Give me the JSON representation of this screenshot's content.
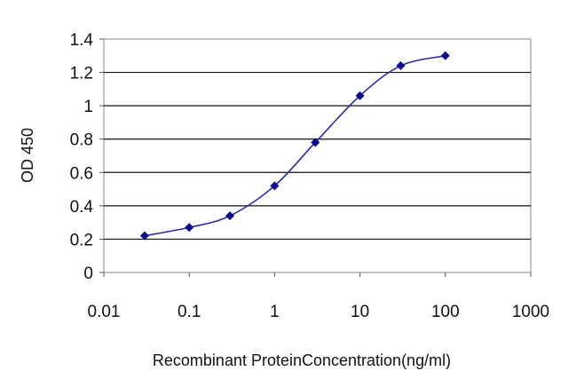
{
  "chart_data": {
    "type": "line",
    "title": "",
    "xlabel": "Recombinant ProteinConcentration(ng/ml)",
    "ylabel": "OD 450",
    "x_scale": "log",
    "xlim": [
      0.01,
      1000
    ],
    "ylim": [
      0,
      1.4
    ],
    "x_ticks": [
      0.01,
      0.1,
      1,
      10,
      100,
      1000
    ],
    "x_tick_labels": [
      "0.01",
      "0.1",
      "1",
      "10",
      "100",
      "1000"
    ],
    "y_ticks": [
      0,
      0.2,
      0.4,
      0.6,
      0.8,
      1,
      1.2,
      1.4
    ],
    "y_tick_labels": [
      "0",
      "0.2",
      "0.4",
      "0.6",
      "0.8",
      "1",
      "1.2",
      "1.4"
    ],
    "grid": "horizontal",
    "legend": "none",
    "series": [
      {
        "x": [
          0.03,
          0.1,
          0.3,
          1,
          3,
          10,
          30,
          100
        ],
        "y": [
          0.22,
          0.27,
          0.34,
          0.52,
          0.78,
          1.06,
          1.24,
          1.3
        ],
        "color": "#2a2aa8",
        "marker": "diamond",
        "marker_color": "#0a0a8c"
      }
    ]
  }
}
